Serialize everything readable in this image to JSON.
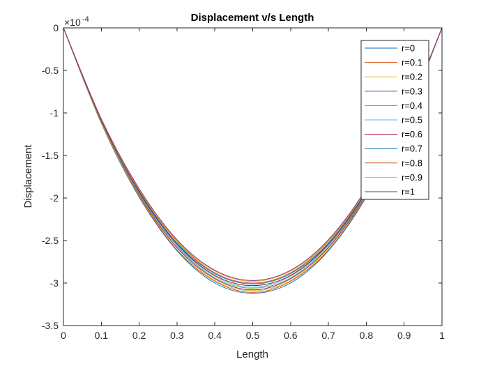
{
  "chart_data": {
    "type": "line",
    "title": "Displacement v/s Length",
    "xlabel": "Length",
    "ylabel": "Displacement",
    "exponent_label": "×10",
    "exponent_power": "-4",
    "xlim": [
      0,
      1
    ],
    "ylim": [
      -3.5,
      0
    ],
    "xticks": [
      "0",
      "0.1",
      "0.2",
      "0.3",
      "0.4",
      "0.5",
      "0.6",
      "0.7",
      "0.8",
      "0.9",
      "1"
    ],
    "yticks": [
      "0",
      "-0.5",
      "-1",
      "-1.5",
      "-2",
      "-2.5",
      "-3",
      "-3.5"
    ],
    "legend_location": "top-right",
    "grid": false,
    "x": [
      0,
      0.1,
      0.2,
      0.3,
      0.4,
      0.5,
      0.6,
      0.7,
      0.8,
      0.9,
      1
    ],
    "series": [
      {
        "name": "r=0",
        "color": "#0072BD",
        "values": [
          0,
          -1.12,
          -1.99,
          -2.62,
          -3.0,
          -3.12,
          -3.0,
          -2.62,
          -1.99,
          -1.12,
          0
        ]
      },
      {
        "name": "r=0.1",
        "color": "#D95319",
        "values": [
          0,
          -1.11,
          -1.98,
          -2.61,
          -2.98,
          -3.11,
          -2.98,
          -2.61,
          -1.98,
          -1.11,
          0
        ]
      },
      {
        "name": "r=0.2",
        "color": "#EDB120",
        "values": [
          0,
          -1.11,
          -1.97,
          -2.59,
          -2.97,
          -3.09,
          -2.97,
          -2.59,
          -1.97,
          -1.11,
          0
        ]
      },
      {
        "name": "r=0.3",
        "color": "#7E2F8E",
        "values": [
          0,
          -1.1,
          -1.96,
          -2.58,
          -2.95,
          -3.08,
          -2.95,
          -2.58,
          -1.96,
          -1.1,
          0
        ]
      },
      {
        "name": "r=0.4",
        "color": "#77AC30",
        "values": [
          0,
          -1.1,
          -1.95,
          -2.56,
          -2.94,
          -3.06,
          -2.94,
          -2.56,
          -1.95,
          -1.1,
          0
        ]
      },
      {
        "name": "r=0.5",
        "color": "#4DBEEE",
        "values": [
          0,
          -1.09,
          -1.94,
          -2.55,
          -2.92,
          -3.05,
          -2.92,
          -2.55,
          -1.94,
          -1.09,
          0
        ]
      },
      {
        "name": "r=0.6",
        "color": "#A2142F",
        "values": [
          0,
          -1.09,
          -1.93,
          -2.54,
          -2.91,
          -3.03,
          -2.91,
          -2.54,
          -1.93,
          -1.09,
          0
        ]
      },
      {
        "name": "r=0.7",
        "color": "#0072BD",
        "values": [
          0,
          -1.08,
          -1.92,
          -2.53,
          -2.89,
          -3.01,
          -2.89,
          -2.53,
          -1.92,
          -1.08,
          0
        ]
      },
      {
        "name": "r=0.8",
        "color": "#D95319",
        "values": [
          0,
          -1.08,
          -1.91,
          -2.51,
          -2.88,
          -3.0,
          -2.88,
          -2.51,
          -1.91,
          -1.08,
          0
        ]
      },
      {
        "name": "r=0.9",
        "color": "#EDB120",
        "values": [
          0,
          -1.07,
          -1.9,
          -2.5,
          -2.86,
          -2.98,
          -2.86,
          -2.5,
          -1.9,
          -1.07,
          0
        ]
      },
      {
        "name": "r=1",
        "color": "#7E2F8E",
        "values": [
          0,
          -1.07,
          -1.89,
          -2.49,
          -2.85,
          -2.97,
          -2.85,
          -2.49,
          -1.89,
          -1.07,
          0
        ]
      }
    ]
  }
}
